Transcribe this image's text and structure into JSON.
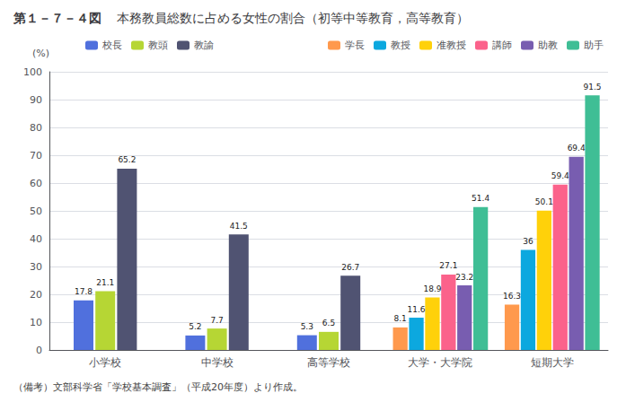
{
  "chart_data": {
    "type": "bar",
    "title": "第１－７－４図",
    "subtitle": "本務教員総数に占める女性の割合（初等中等教育，高等教育）",
    "ylabel": "(%)",
    "annotations": [
      "（備考）文部科学省「学校基本調査」（平成20年度）より作成。"
    ],
    "categories": [
      "小学校",
      "中学校",
      "高等学校",
      "大学・大学院",
      "短期大学"
    ],
    "series": [
      {
        "name": "校長",
        "values": [
          17.8,
          5.2,
          5.3,
          null,
          null
        ]
      },
      {
        "name": "教頭",
        "values": [
          21.1,
          7.7,
          6.5,
          null,
          null
        ]
      },
      {
        "name": "教諭",
        "values": [
          65.2,
          41.5,
          26.7,
          null,
          null
        ]
      },
      {
        "name": "学長",
        "values": [
          null,
          null,
          null,
          8.1,
          16.3
        ]
      },
      {
        "name": "教授",
        "values": [
          null,
          null,
          null,
          11.6,
          36.0
        ]
      },
      {
        "name": "准教授",
        "values": [
          null,
          null,
          null,
          18.9,
          50.1
        ]
      },
      {
        "name": "講師",
        "values": [
          null,
          null,
          null,
          27.1,
          59.4
        ]
      },
      {
        "name": "助教",
        "values": [
          null,
          null,
          null,
          23.2,
          69.4
        ]
      },
      {
        "name": "助手",
        "values": [
          null,
          null,
          null,
          51.4,
          91.5
        ]
      }
    ],
    "ylim": [
      0,
      100
    ],
    "yticks": [
      0,
      10,
      20,
      30,
      40,
      50,
      60,
      70,
      80,
      90,
      100
    ],
    "grid": true,
    "data_labels": true,
    "legend": "top"
  }
}
